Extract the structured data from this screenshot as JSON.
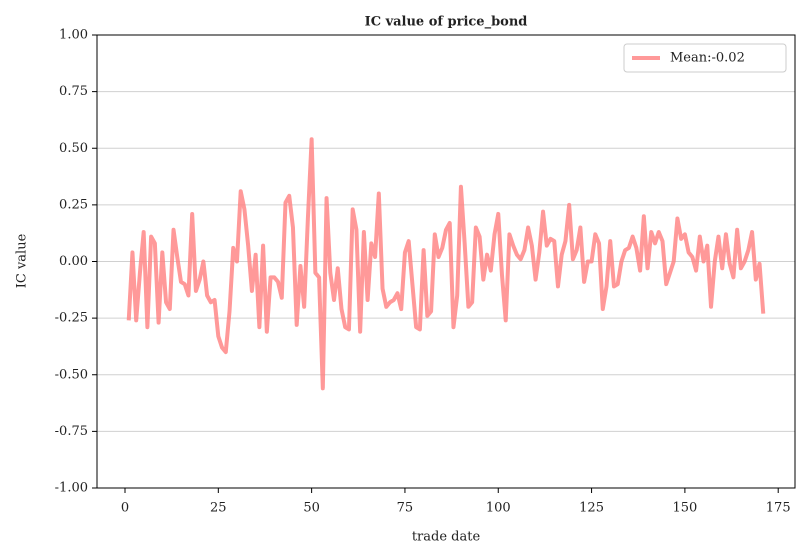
{
  "chart_data": {
    "type": "line",
    "title": "IC value of price_bond",
    "xlabel": "trade date",
    "ylabel": "IC value",
    "x": [
      1,
      2,
      3,
      4,
      5,
      6,
      7,
      8,
      9,
      10,
      11,
      12,
      13,
      14,
      15,
      16,
      17,
      18,
      19,
      20,
      21,
      22,
      23,
      24,
      25,
      26,
      27,
      28,
      29,
      30,
      31,
      32,
      33,
      34,
      35,
      36,
      37,
      38,
      39,
      40,
      41,
      42,
      43,
      44,
      45,
      46,
      47,
      48,
      49,
      50,
      51,
      52,
      53,
      54,
      55,
      56,
      57,
      58,
      59,
      60,
      61,
      62,
      63,
      64,
      65,
      66,
      67,
      68,
      69,
      70,
      71,
      72,
      73,
      74,
      75,
      76,
      77,
      78,
      79,
      80,
      81,
      82,
      83,
      84,
      85,
      86,
      87,
      88,
      89,
      90,
      91,
      92,
      93,
      94,
      95,
      96,
      97,
      98,
      99,
      100,
      101,
      102,
      103,
      104,
      105,
      106,
      107,
      108,
      109,
      110,
      111,
      112,
      113,
      114,
      115,
      116,
      117,
      118,
      119,
      120,
      121,
      122,
      123,
      124,
      125,
      126,
      127,
      128,
      129,
      130,
      131,
      132,
      133,
      134,
      135,
      136,
      137,
      138,
      139,
      140,
      141,
      142,
      143,
      144,
      145,
      146,
      147,
      148,
      149,
      150,
      151,
      152,
      153,
      154,
      155,
      156,
      157,
      158,
      159,
      160,
      161,
      162,
      163,
      164,
      165,
      166,
      167,
      168,
      169,
      170,
      171
    ],
    "series": [
      {
        "name": "Mean:-0.02",
        "color": "#ff8080",
        "values": [
          -0.26,
          0.04,
          -0.26,
          -0.05,
          0.13,
          -0.29,
          0.11,
          0.08,
          -0.27,
          0.04,
          -0.18,
          -0.21,
          0.14,
          0.02,
          -0.09,
          -0.1,
          -0.15,
          0.21,
          -0.13,
          -0.08,
          0.0,
          -0.15,
          -0.18,
          -0.17,
          -0.33,
          -0.38,
          -0.4,
          -0.22,
          0.06,
          0.0,
          0.31,
          0.23,
          0.07,
          -0.13,
          0.03,
          -0.29,
          0.07,
          -0.31,
          -0.07,
          -0.07,
          -0.09,
          -0.16,
          0.26,
          0.29,
          0.15,
          -0.28,
          -0.02,
          -0.2,
          0.19,
          0.54,
          -0.05,
          -0.07,
          -0.56,
          0.28,
          -0.05,
          -0.17,
          -0.03,
          -0.21,
          -0.29,
          -0.3,
          0.23,
          0.14,
          -0.31,
          0.13,
          -0.17,
          0.08,
          0.02,
          0.3,
          -0.12,
          -0.2,
          -0.18,
          -0.17,
          -0.14,
          -0.21,
          0.04,
          0.09,
          -0.1,
          -0.29,
          -0.3,
          0.05,
          -0.24,
          -0.22,
          0.12,
          0.02,
          0.06,
          0.14,
          0.17,
          -0.29,
          -0.15,
          0.33,
          0.08,
          -0.2,
          -0.18,
          0.15,
          0.11,
          -0.08,
          0.03,
          -0.04,
          0.12,
          0.21,
          -0.06,
          -0.26,
          0.12,
          0.07,
          0.03,
          0.01,
          0.05,
          0.15,
          0.07,
          -0.08,
          0.04,
          0.22,
          0.07,
          0.1,
          0.09,
          -0.11,
          0.03,
          0.09,
          0.25,
          0.01,
          0.05,
          0.15,
          -0.09,
          0.0,
          0.0,
          0.12,
          0.08,
          -0.21,
          -0.11,
          0.09,
          -0.11,
          -0.1,
          0.0,
          0.05,
          0.06,
          0.11,
          0.06,
          -0.04,
          0.2,
          -0.03,
          0.13,
          0.08,
          0.13,
          0.09,
          -0.1,
          -0.05,
          0.0,
          0.19,
          0.1,
          0.12,
          0.04,
          0.02,
          -0.04,
          0.11,
          0.0,
          0.07,
          -0.2,
          0.0,
          0.11,
          -0.03,
          0.12,
          -0.01,
          -0.07,
          0.14,
          -0.03,
          0.0,
          0.05,
          0.13,
          -0.08,
          -0.01,
          -0.23
        ]
      }
    ],
    "xlim": [
      -7.5,
      179.5
    ],
    "xticks": [
      0,
      25,
      50,
      75,
      100,
      125,
      150,
      175
    ],
    "ylim": [
      -1,
      1
    ],
    "yticks": [
      {
        "value": -1,
        "label": "-1.00"
      },
      {
        "value": -0.75,
        "label": "-0.75"
      },
      {
        "value": -0.5,
        "label": "-0.50"
      },
      {
        "value": -0.25,
        "label": "-0.25"
      },
      {
        "value": 0,
        "label": "0.00"
      },
      {
        "value": 0.25,
        "label": "0.25"
      },
      {
        "value": 0.5,
        "label": "0.50"
      },
      {
        "value": 0.75,
        "label": "0.75"
      },
      {
        "value": 1,
        "label": "1.00"
      }
    ],
    "grid": "y",
    "legend": "upper right"
  }
}
